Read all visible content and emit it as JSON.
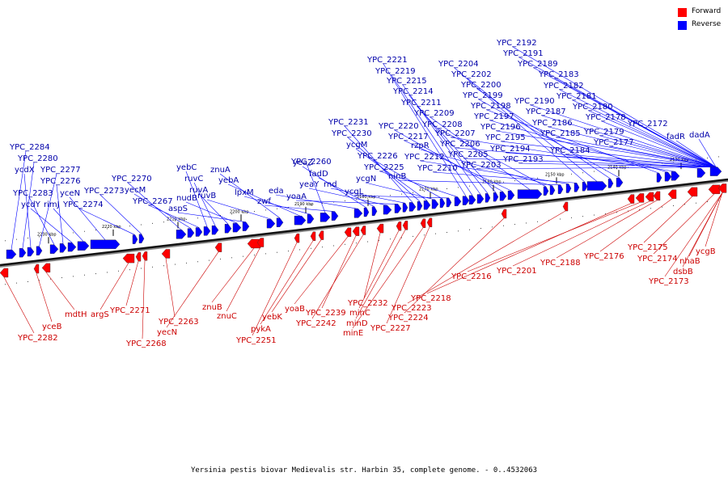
{
  "legend": {
    "forward": {
      "label": "Forward",
      "color": "#ff0000"
    },
    "reverse": {
      "label": "Reverse",
      "color": "#0000ff"
    }
  },
  "caption": "Yersinia pestis biovar Medievalis str. Harbin 35, complete genome. - 0..4532063",
  "ticks": [
    "2230 kbp",
    "2220 kbp",
    "2210 kbp",
    "2200 kbp",
    "2190 kbp",
    "2180 kbp",
    "2170 kbp",
    "2160 kbp",
    "2150 kbp",
    "2140 kbp",
    "2130 kbp"
  ],
  "reverse_labels": [
    "YPC_2284",
    "YPC_2280",
    "ycdX",
    "YPC_2277",
    "YPC_2283",
    "YPC_2276",
    "ycdY",
    "rimJ",
    "yceN",
    "YPC_2274",
    "YPC_2273",
    "YPC_2270",
    "yecM",
    "YPC_2267",
    "yebC",
    "ruvC",
    "ruvA",
    "nudB",
    "aspS",
    "ruvB",
    "znuA",
    "yebA",
    "lpxM",
    "YPC_2260",
    "zwf",
    "eda",
    "yeaZ",
    "fadD",
    "yeaY",
    "yoaA",
    "rnd",
    "YPC_2231",
    "YPC_2230",
    "ycgM",
    "ycgN",
    "YPC_2226",
    "ycgL",
    "YPC_2225",
    "YPC_2221",
    "YPC_2219",
    "YPC_2215",
    "YPC_2214",
    "YPC_2211",
    "YPC_2220",
    "YPC_2217",
    "YPC_2209",
    "YPC_2208",
    "rzpR",
    "ninB",
    "YPC_2212",
    "YPC_2210",
    "YPC_2204",
    "YPC_2202",
    "YPC_2200",
    "YPC_2199",
    "YPC_2198",
    "YPC_2197",
    "YPC_2207",
    "YPC_2206",
    "YPC_2196",
    "YPC_2205",
    "YPC_2195",
    "YPC_2203",
    "YPC_2194",
    "YPC_2193",
    "YPC_2192",
    "YPC_2191",
    "YPC_2189",
    "YPC_2190",
    "YPC_2187",
    "YPC_2186",
    "YPC_2183",
    "YPC_2182",
    "YPC_2181",
    "YPC_2180",
    "YPC_2185",
    "YPC_2184",
    "YPC_2178",
    "YPC_2179",
    "YPC_2177",
    "YPC_2172",
    "fadR",
    "dadA"
  ],
  "forward_labels": [
    "YPC_2282",
    "yceB",
    "mdtH",
    "argS",
    "YPC_2271",
    "YPC_2268",
    "YPC_2263",
    "yecN",
    "znuB",
    "znuC",
    "YPC_2251",
    "pykA",
    "yebK",
    "yoaB",
    "YPC_2239",
    "YPC_2242",
    "YPC_2232",
    "minC",
    "minD",
    "minE",
    "YPC_2227",
    "YPC_2224",
    "YPC_2223",
    "YPC_2218",
    "YPC_2216",
    "YPC_2201",
    "YPC_2188",
    "YPC_2176",
    "YPC_2175",
    "YPC_2174",
    "YPC_2173",
    "nhaB",
    "dsbB",
    "ycgB"
  ]
}
